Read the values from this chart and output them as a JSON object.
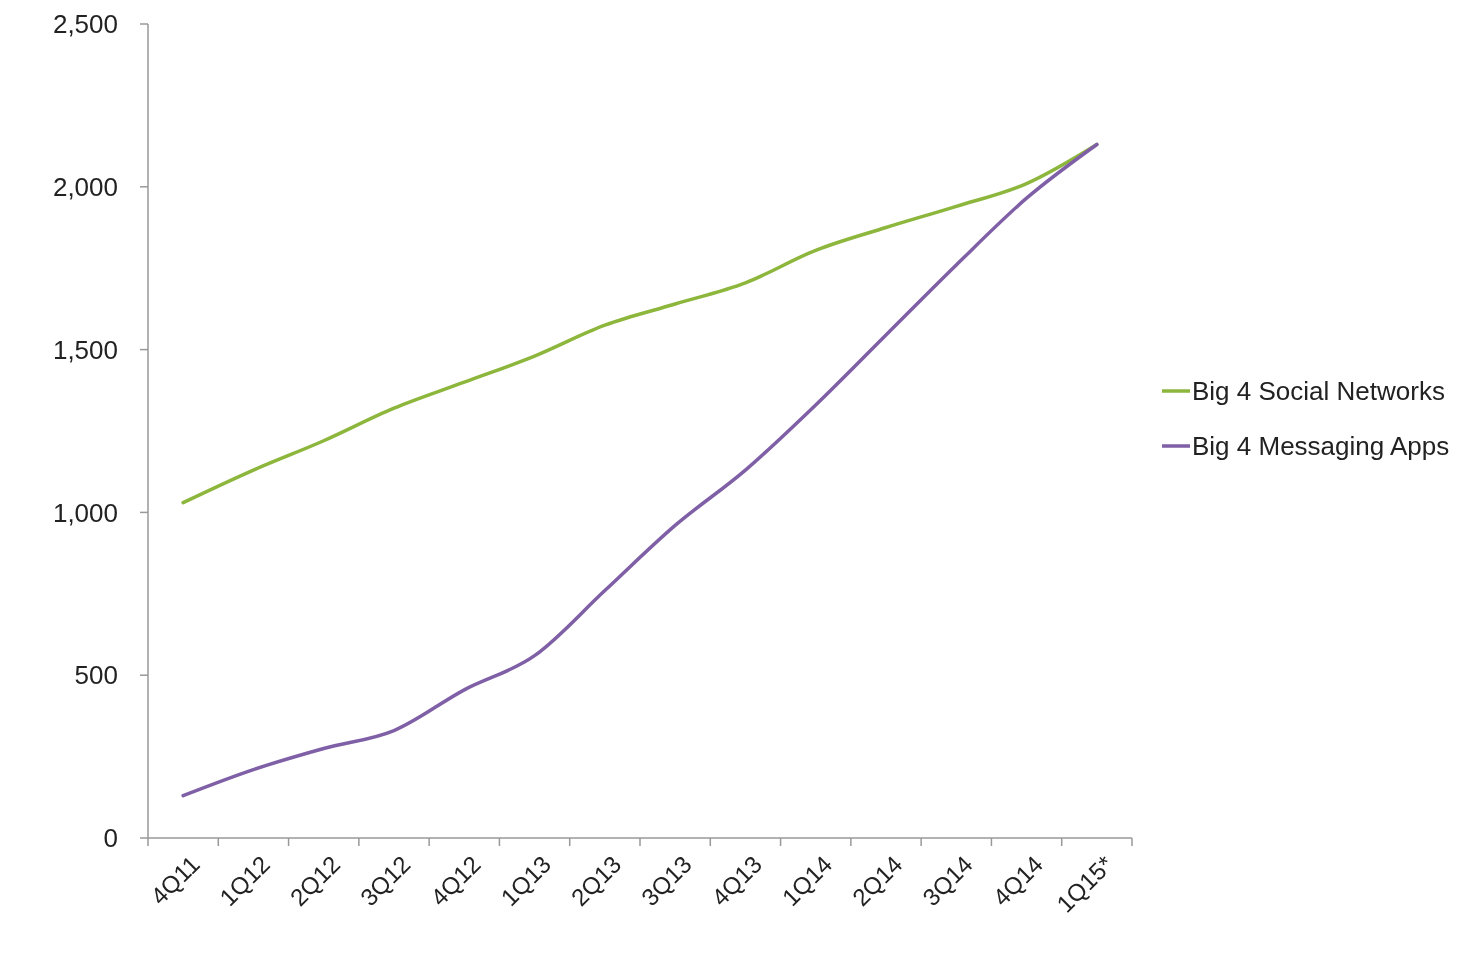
{
  "chart_data": {
    "type": "line",
    "categories": [
      "4Q11",
      "1Q12",
      "2Q12",
      "3Q12",
      "4Q12",
      "1Q13",
      "2Q13",
      "3Q13",
      "4Q13",
      "1Q14",
      "2Q14",
      "3Q14",
      "4Q14",
      "1Q15*"
    ],
    "series": [
      {
        "name": "Big 4 Social Networks",
        "color": "#8db63c",
        "values": [
          1030,
          1130,
          1220,
          1320,
          1400,
          1480,
          1575,
          1640,
          1705,
          1805,
          1875,
          1940,
          2010,
          2130
        ]
      },
      {
        "name": "Big 4 Messaging Apps",
        "color": "#7f5fa6",
        "values": [
          130,
          210,
          275,
          330,
          455,
          560,
          760,
          960,
          1130,
          1330,
          1545,
          1760,
          1965,
          2130
        ]
      }
    ],
    "ylim": [
      0,
      2500
    ],
    "yticks": [
      {
        "value": 0,
        "label": "0"
      },
      {
        "value": 500,
        "label": "500"
      },
      {
        "value": 1000,
        "label": "1,000"
      },
      {
        "value": 1500,
        "label": "1,500"
      },
      {
        "value": 2000,
        "label": "2,000"
      },
      {
        "value": 2500,
        "label": "2,500"
      }
    ],
    "grid": false,
    "legend": "right",
    "marker": "none",
    "line_style": "solid"
  }
}
